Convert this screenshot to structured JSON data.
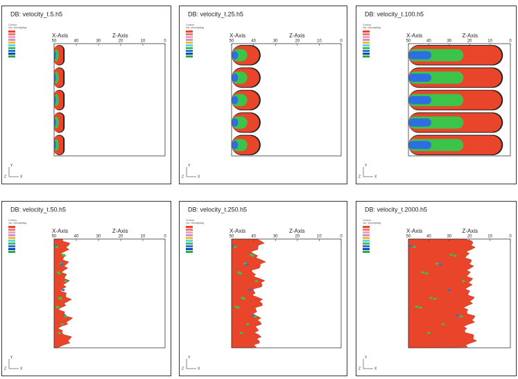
{
  "panels": [
    {
      "title": "DB: velocity_t.5.h5",
      "kind": "finger",
      "extent": 0.07
    },
    {
      "title": "DB: velocity_t.25.h5",
      "kind": "finger",
      "extent": 0.24
    },
    {
      "title": "DB: velocity_t.100.h5",
      "kind": "finger",
      "extent": 0.9
    },
    {
      "title": "DB: velocity_t.50.h5",
      "kind": "rough",
      "extent": 0.1
    },
    {
      "title": "DB: velocity_t.250.h5",
      "kind": "rough",
      "extent": 0.24
    },
    {
      "title": "DB: velocity_t.2000.h5",
      "kind": "rough",
      "extent": 0.6
    }
  ],
  "axes": {
    "x_label": "X-Axis",
    "z_label": "Z-Axis",
    "ticks": [
      "50",
      "40",
      "30",
      "20",
      "10",
      "0"
    ]
  },
  "legend": {
    "title": "Contour",
    "variable": "Var: VelocityMag"
  },
  "triad": {
    "y": "Y",
    "z": "Z",
    "x": "X"
  }
}
